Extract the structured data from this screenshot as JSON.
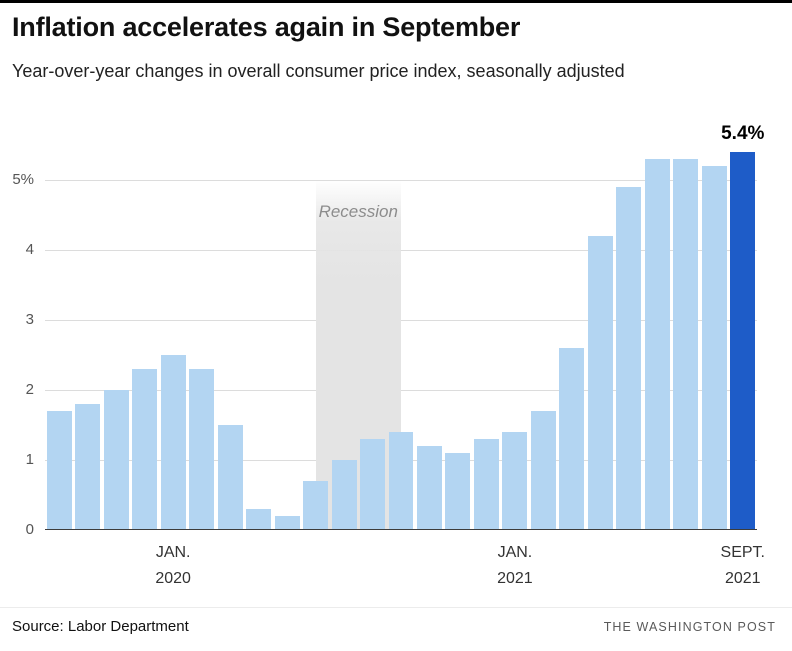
{
  "header": {
    "title": "Inflation accelerates again in September",
    "subtitle": "Year-over-year changes in overall consumer price index, seasonally adjusted"
  },
  "chart_data": {
    "type": "bar",
    "title": "Inflation accelerates again in September",
    "subtitle": "Year-over-year changes in overall consumer price index, seasonally adjusted",
    "unit": "percent",
    "values": [
      1.7,
      1.8,
      2.0,
      2.3,
      2.5,
      2.3,
      1.5,
      0.3,
      0.2,
      0.7,
      1.0,
      1.3,
      1.4,
      1.2,
      1.1,
      1.3,
      1.4,
      1.7,
      2.6,
      4.2,
      4.9,
      5.3,
      5.3,
      5.2,
      5.4
    ],
    "highlight_index": 24,
    "highlight_label": "5.4%",
    "ylim": [
      0,
      5.6
    ],
    "yticks": [
      {
        "value": 0,
        "label": "0"
      },
      {
        "value": 1,
        "label": "1"
      },
      {
        "value": 2,
        "label": "2"
      },
      {
        "value": 3,
        "label": "3"
      },
      {
        "value": 4,
        "label": "4"
      },
      {
        "value": 5,
        "label": "5%"
      }
    ],
    "x_axis_labels": [
      {
        "index": 4,
        "line1": "JAN.",
        "line2": "2020"
      },
      {
        "index": 16,
        "line1": "JAN.",
        "line2": "2021"
      },
      {
        "index": 24,
        "line1": "SEPT.",
        "line2": "2021"
      }
    ],
    "recession": {
      "label": "Recession",
      "from_bar": 9.5,
      "to_bar": 12.5,
      "top_value": 5.0
    },
    "grid": true,
    "legend": "none"
  },
  "colors": {
    "bar": "#b3d5f2",
    "bar_highlight": "#1e5cc8",
    "recession_band": "#e4e4e4",
    "gridline": "#dcdcdc",
    "baseline": "#3c3c3c",
    "top_rule": "#000000"
  },
  "footer": {
    "source": "Source: Labor Department",
    "brand": "THE WASHINGTON POST"
  }
}
